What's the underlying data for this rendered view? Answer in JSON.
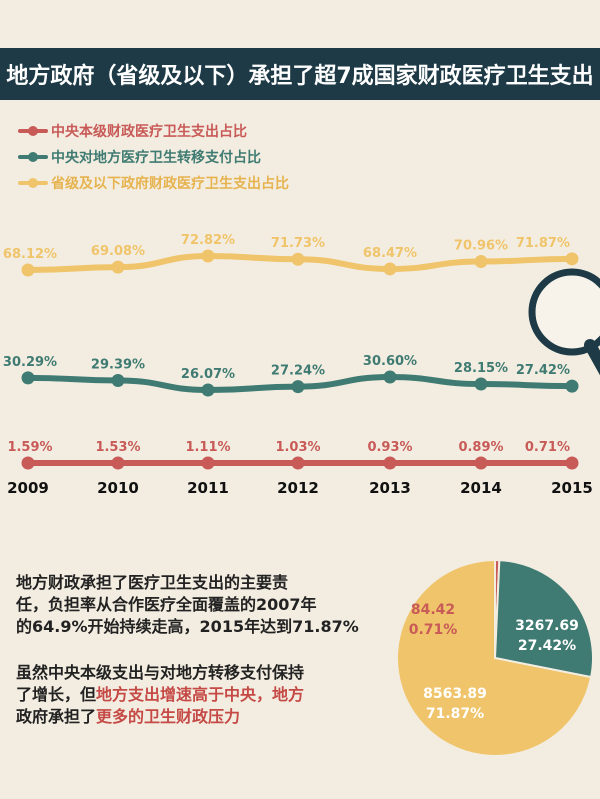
{
  "title": "地方政府（省级及以下）承担了超7成国家财政医疗卫生支出",
  "colors": {
    "central_own": "#c85a57",
    "central_transfer": "#3f7b72",
    "local": "#f0c46a",
    "title_bg": "#1d3a46",
    "background": "#f3ede1"
  },
  "chart_data": [
    {
      "type": "line",
      "x": [
        "2009",
        "2010",
        "2011",
        "2012",
        "2013",
        "2014",
        "2015"
      ],
      "series": [
        {
          "name": "中央本级财政医疗卫生支出占比",
          "color": "#c85a57",
          "values": [
            1.59,
            1.53,
            1.11,
            1.03,
            0.93,
            0.89,
            0.71
          ],
          "labels": [
            "1.59%",
            "1.53%",
            "1.11%",
            "1.03%",
            "0.93%",
            "0.89%",
            "0.71%"
          ]
        },
        {
          "name": "中央对地方医疗卫生转移支付占比",
          "color": "#3f7b72",
          "values": [
            30.29,
            29.39,
            26.07,
            27.24,
            30.6,
            28.15,
            27.42
          ],
          "labels": [
            "30.29%",
            "29.39%",
            "26.07%",
            "27.24%",
            "30.60%",
            "28.15%",
            "27.42%"
          ]
        },
        {
          "name": "省级及以下政府财政医疗卫生支出占比",
          "color": "#f0c46a",
          "values": [
            68.12,
            69.08,
            72.82,
            71.73,
            68.47,
            70.96,
            71.87
          ],
          "labels": [
            "68.12%",
            "69.08%",
            "72.82%",
            "71.73%",
            "68.47%",
            "70.96%",
            "71.87%"
          ]
        }
      ]
    },
    {
      "type": "pie",
      "slices": [
        {
          "amount": "84.42",
          "percent": "0.71%",
          "value": 84.42,
          "color": "#c85a57"
        },
        {
          "amount": "3267.69",
          "percent": "27.42%",
          "value": 3267.69,
          "color": "#3f7b72"
        },
        {
          "amount": "8563.89",
          "percent": "71.87%",
          "value": 8563.89,
          "color": "#f0c46a"
        }
      ]
    }
  ],
  "paragraph1": {
    "l1": "地方财政承担了医疗卫生支出的主要责",
    "l2a": "任，负担率从合作医疗全面覆盖的",
    "l2b": "2007",
    "l2c": "年",
    "l3a": "的",
    "l3b": "64.9%",
    "l3c": "开始持续走高，",
    "l3d": "2015",
    "l3e": "年达到",
    "l3f": "71.87%"
  },
  "paragraph2": {
    "l1": "虽然中央本级支出与对地方转移支付保持",
    "l2a": "了增长，但",
    "l2b": "地方支出增速高于中央，地方",
    "l3a": "政府承担了",
    "l3b": "更多的卫生财政压力"
  }
}
